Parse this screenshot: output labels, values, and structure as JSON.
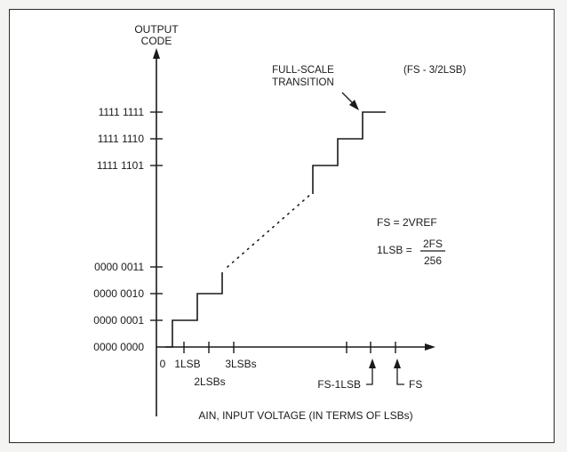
{
  "y_axis": {
    "title_line1": "OUTPUT",
    "title_line2": "CODE",
    "codes": [
      "1111 1111",
      "1111 1110",
      "1111 1101",
      "0000 0011",
      "0000 0010",
      "0000 0001",
      "0000 0000"
    ]
  },
  "x_axis": {
    "title": "AIN, INPUT VOLTAGE (IN TERMS OF LSBs)",
    "labels": {
      "zero": "0",
      "one_lsb": "1LSB",
      "two_lsb": "2LSBs",
      "three_lsb": "3LSBs",
      "fs_minus_1lsb": "FS-1LSB",
      "fs": "FS"
    }
  },
  "annotations": {
    "full_scale_line1": "FULL-SCALE",
    "full_scale_line2": "TRANSITION",
    "fs_minus": "(FS - 3/2LSB)",
    "fs_eq": "FS = 2VREF",
    "lsb_prefix": "1LSB =",
    "lsb_numerator": "2FS",
    "lsb_denominator": "256"
  },
  "colors": {
    "ink": "#1a1a1a",
    "frame": "#2a2a2a",
    "background": "#ffffff"
  }
}
